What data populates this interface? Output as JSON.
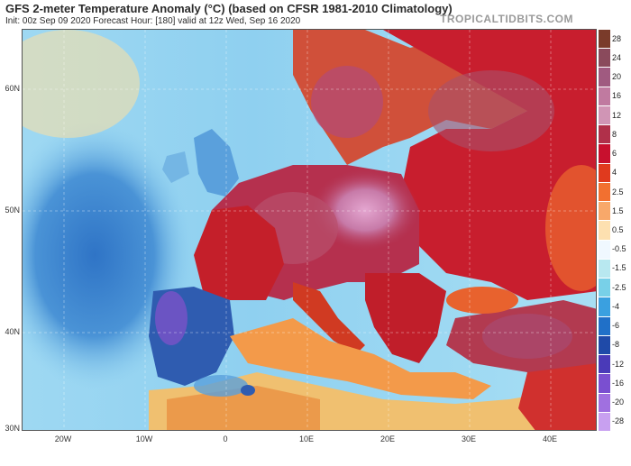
{
  "header": {
    "title": "GFS 2-meter Temperature Anomaly (°C) (based on CFSR 1981-2010 Climatology)",
    "subtitle": "Init: 00z Sep 09 2020   Forecast Hour: [180]   valid at 12z Wed, Sep 16 2020",
    "brand": "TROPICALTIDBITS.COM"
  },
  "map": {
    "lat_labels": [
      "60N",
      "50N",
      "40N",
      "30N"
    ],
    "lon_labels": [
      "20W",
      "10W",
      "0",
      "10E",
      "20E",
      "30E",
      "40E"
    ]
  },
  "colorbar": {
    "labels": [
      "28",
      "24",
      "20",
      "16",
      "12",
      "8",
      "6",
      "4",
      "2.5",
      "1.5",
      "0.5",
      "-0.5",
      "-1.5",
      "-2.5",
      "-4",
      "-6",
      "-8",
      "-12",
      "-16",
      "-20",
      "-28"
    ],
    "colors": [
      "#7a3b2a",
      "#8a4a5c",
      "#a05a80",
      "#c07aa0",
      "#d095b5",
      "#b0304a",
      "#c8102e",
      "#e03a1e",
      "#f27030",
      "#f8a86a",
      "#fde0b0",
      "#f0f8ff",
      "#b8e8f0",
      "#78d0e8",
      "#3aa0e0",
      "#2070c8",
      "#1f4aa8",
      "#4a3ab8",
      "#7a4fd0",
      "#a070e0",
      "#c8a0f0"
    ]
  }
}
